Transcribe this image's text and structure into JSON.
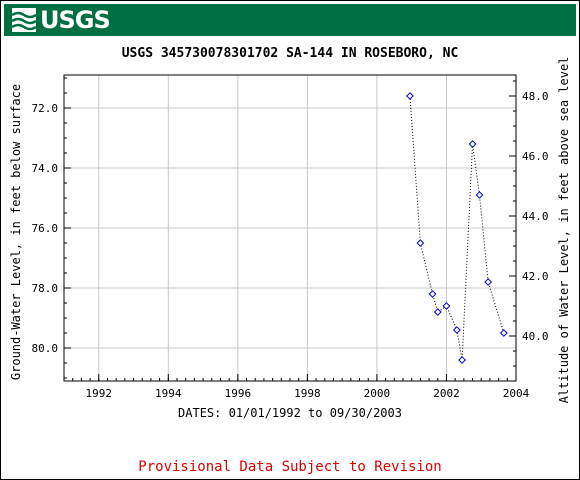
{
  "header": {
    "logo_text": "USGS",
    "brand_color": "#006f41",
    "logo_icon": "usgs-wave-icon"
  },
  "chart_data": {
    "type": "scatter",
    "title": "USGS 345730078301702 SA-144 IN ROSEBORO, NC",
    "xlabel": "DATES: 01/01/1992 to 09/30/2003",
    "ylabel_left": "Ground-Water Level, in feet below surface",
    "ylabel_right": "Altitude of Water Level, in feet above sea level",
    "x_ticks": [
      1992,
      1994,
      1996,
      1998,
      2000,
      2002,
      2004
    ],
    "x_tick_labels": [
      "1992",
      "1994",
      "1996",
      "1998",
      "2000",
      "2002",
      "2004"
    ],
    "xlim": [
      1991.0,
      2004.0
    ],
    "y_left_ticks": [
      72,
      74,
      76,
      78,
      80
    ],
    "y_left_tick_labels": [
      "72.0",
      "74.0",
      "76.0",
      "78.0",
      "80.0"
    ],
    "y_left_lim": [
      70.9,
      81.1
    ],
    "y_left_inverted": true,
    "y_right_ticks": [
      48,
      46,
      44,
      42,
      40
    ],
    "y_right_tick_labels": [
      "48.0",
      "46.0",
      "44.0",
      "42.0",
      "40.0"
    ],
    "grid": true,
    "marker_color": "#0000cc",
    "line_style": "dotted",
    "series": [
      {
        "x": [
          2000.95,
          2001.25,
          2001.6,
          2001.75,
          2002.0,
          2002.3,
          2002.45,
          2002.75,
          2002.95,
          2003.2,
          2003.65
        ],
        "y": [
          71.6,
          76.5,
          78.2,
          78.8,
          78.6,
          79.4,
          80.4,
          73.2,
          74.9,
          77.8,
          79.5
        ]
      }
    ]
  },
  "footer": {
    "notice": "Provisional Data Subject to Revision"
  }
}
